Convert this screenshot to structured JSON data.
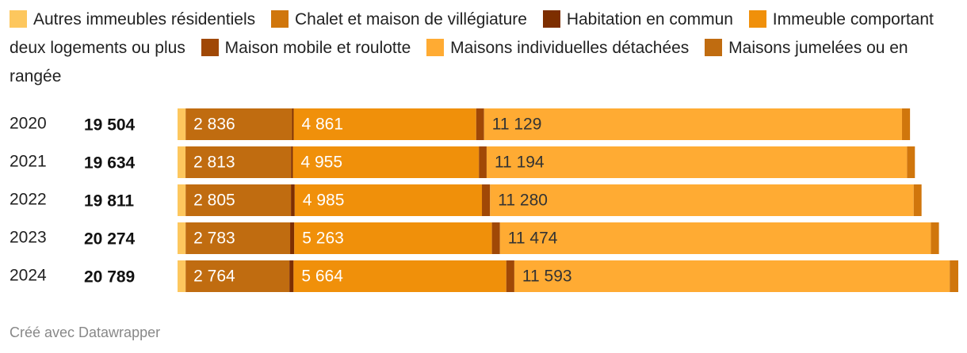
{
  "chart_data": {
    "type": "stacked-bar",
    "categories": [
      "2020",
      "2021",
      "2022",
      "2023",
      "2024"
    ],
    "totals": [
      19504,
      19634,
      19811,
      20274,
      20789
    ],
    "total_labels": [
      "19 504",
      "19 634",
      "19 811",
      "20 274",
      "20 789"
    ],
    "series": [
      {
        "name": "Autres immeubles résidentiels",
        "color": "#fdc75e",
        "values": [
          215,
          212,
          215,
          215,
          215
        ]
      },
      {
        "name": "Chalet et maison de villégiature",
        "color": "#d0760c",
        "values": [
          213,
          210,
          210,
          215,
          228
        ]
      },
      {
        "name": "Habitation en commun",
        "color": "#7d2e00",
        "values": [
          40,
          45,
          100,
          110,
          110
        ]
      },
      {
        "name": "Immeuble comportant deux logements ou plus",
        "color": "#f0900a",
        "values": [
          4861,
          4955,
          4985,
          5263,
          5664
        ],
        "value_labels": [
          "4 861",
          "4 955",
          "4 985",
          "5 263",
          "5 664"
        ]
      },
      {
        "name": "Maison mobile et roulotte",
        "color": "#a04806",
        "values": [
          210,
          205,
          216,
          214,
          215
        ]
      },
      {
        "name": "Maisons individuelles détachées",
        "color": "#ffab33",
        "values": [
          11129,
          11194,
          11280,
          11474,
          11593
        ],
        "value_labels": [
          "11 129",
          "11 194",
          "11 280",
          "11 474",
          "11 593"
        ]
      },
      {
        "name": "Maisons jumelées ou en rangée",
        "color": "#c06c10",
        "values": [
          2836,
          2813,
          2805,
          2783,
          2764
        ],
        "value_labels": [
          "2 836",
          "2 813",
          "2 805",
          "2 783",
          "2 764"
        ]
      }
    ],
    "footer": "Créé avec Datawrapper"
  }
}
